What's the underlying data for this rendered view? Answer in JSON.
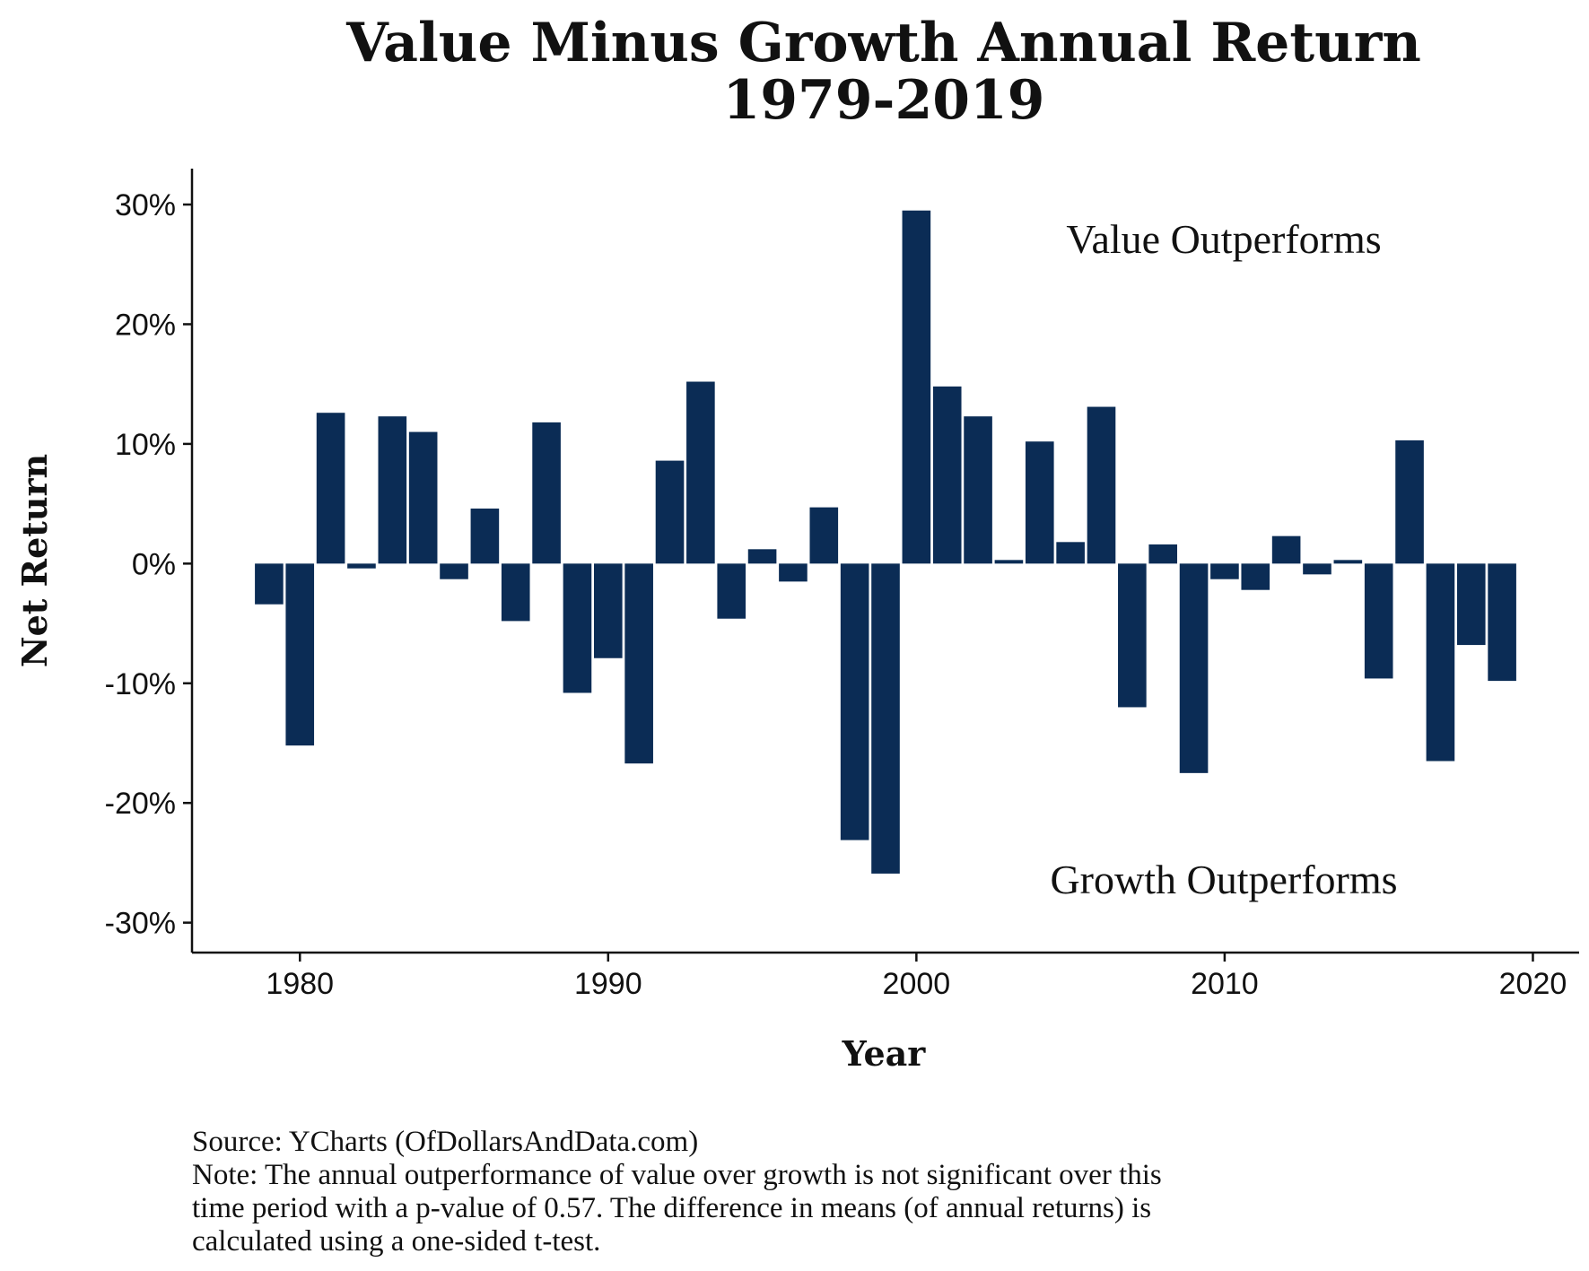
{
  "chart_data": {
    "type": "bar",
    "title": [
      "Value Minus Growth Annual Return",
      "1979-2019"
    ],
    "xlabel": "Year",
    "ylabel": "Net Return",
    "xlim": [
      1976.5,
      2021.5
    ],
    "ylim": [
      -32.5,
      33
    ],
    "x_ticks": [
      1980,
      1990,
      2000,
      2010,
      2020
    ],
    "y_ticks": [
      30,
      20,
      10,
      0,
      -10,
      -20,
      -30
    ],
    "y_tick_labels": [
      "30%",
      "20%",
      "10%",
      "0%",
      "-10%",
      "-20%",
      "-30%"
    ],
    "bar_color": "#0b2c55",
    "grid": false,
    "x": [
      1979,
      1980,
      1981,
      1982,
      1983,
      1984,
      1985,
      1986,
      1987,
      1988,
      1989,
      1990,
      1991,
      1992,
      1993,
      1994,
      1995,
      1996,
      1997,
      1998,
      1999,
      2000,
      2001,
      2002,
      2003,
      2004,
      2005,
      2006,
      2007,
      2008,
      2009,
      2010,
      2011,
      2012,
      2013,
      2014,
      2015,
      2016,
      2017,
      2018,
      2019
    ],
    "values": [
      -3.4,
      -15.2,
      12.6,
      -0.4,
      12.3,
      11.0,
      -1.3,
      4.6,
      -4.8,
      11.8,
      -10.8,
      -7.9,
      -16.7,
      8.6,
      15.2,
      -4.6,
      1.2,
      -1.5,
      4.7,
      -23.1,
      -25.9,
      29.5,
      14.8,
      12.3,
      0.3,
      10.2,
      1.8,
      13.1,
      -12.0,
      1.6,
      -17.5,
      -1.3,
      -2.2,
      2.3,
      -0.9,
      0.3,
      -9.6,
      10.3,
      -16.5,
      -6.8,
      -9.8
    ],
    "annotations": [
      "Value Outperforms",
      "Growth Outperforms"
    ]
  },
  "captions": [
    "Source:  YCharts (OfDollarsAndData.com)",
    "Note: The annual outperformance of value over growth is not significant over this",
    "time period with a p-value of 0.57. The difference in means (of annual returns) is",
    "calculated using a one-sided t-test."
  ]
}
